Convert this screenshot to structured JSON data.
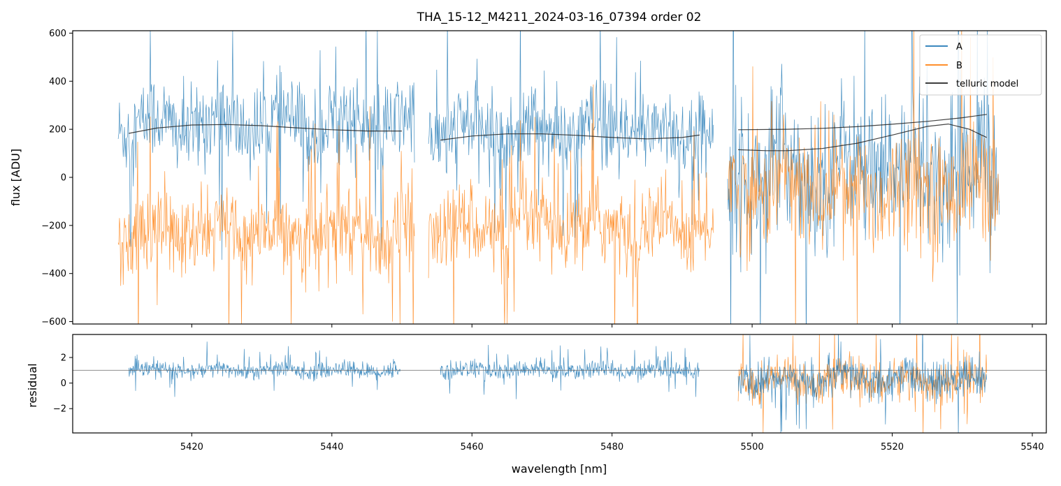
{
  "chart_data": [
    {
      "type": "line",
      "panel": "top",
      "title": "THA_15-12_M4211_2024-03-16_07394  order 02",
      "ylabel": "flux [ADU]",
      "xlabel": "",
      "xlim": [
        5403,
        5542
      ],
      "ylim": [
        -610,
        610
      ],
      "xticks": [
        5420,
        5440,
        5460,
        5480,
        5500,
        5520,
        5540
      ],
      "yticks": [
        600,
        400,
        200,
        0,
        -200,
        -400,
        -600
      ],
      "ytick_labels": [
        "600",
        "400",
        "200",
        "0",
        "−200",
        "−400",
        "−600"
      ],
      "colors": {
        "A": "#1f77b4",
        "B": "#ff7f0e",
        "model": "#222222"
      },
      "segments": [
        {
          "x": [
            5409.5,
            5451.8
          ],
          "A_level": 220,
          "A_noise": 150,
          "B_level": -230,
          "B_noise": 150
        },
        {
          "x": [
            5453.8,
            5494.5
          ],
          "A_level": 190,
          "A_noise": 150,
          "B_level": -210,
          "B_noise": 150
        },
        {
          "x": [
            5496.5,
            5535.3
          ],
          "A_level": 40,
          "A_noise": 260,
          "B_level": -40,
          "B_noise": 200
        }
      ],
      "series": [
        {
          "name": "A",
          "color": "#1f77b4"
        },
        {
          "name": "B",
          "color": "#ff7f0e"
        },
        {
          "name": "telluric model",
          "color": "#222222",
          "curves": [
            {
              "x": [
                5411,
                5415,
                5420,
                5425,
                5430,
                5435,
                5440,
                5445,
                5450
              ],
              "y": [
                183,
                205,
                218,
                220,
                215,
                206,
                198,
                193,
                193
              ]
            },
            {
              "x": [
                5455.5,
                5460,
                5465,
                5470,
                5475,
                5480,
                5485,
                5490,
                5492.5
              ],
              "y": [
                155,
                172,
                181,
                181,
                175,
                166,
                160,
                166,
                176
              ]
            },
            {
              "x": [
                5498,
                5505,
                5510,
                5515,
                5520,
                5525,
                5530,
                5533.5
              ],
              "y": [
                198,
                200,
                204,
                211,
                221,
                233,
                248,
                262
              ]
            },
            {
              "x": [
                5498,
                5502,
                5505,
                5510,
                5515,
                5520,
                5525,
                5528,
                5531,
                5533.5
              ],
              "y": [
                115,
                111,
                111,
                120,
                142,
                176,
                212,
                222,
                200,
                166
              ]
            }
          ]
        }
      ],
      "legend": {
        "position": "top-right",
        "entries": [
          "A",
          "B",
          "telluric model"
        ]
      }
    },
    {
      "type": "line",
      "panel": "bottom",
      "title": "",
      "ylabel": "residual",
      "xlabel": "wavelength [nm]",
      "xlim": [
        5403,
        5542
      ],
      "ylim": [
        -3.9,
        3.8
      ],
      "xticks": [
        5420,
        5440,
        5460,
        5480,
        5500,
        5520,
        5540
      ],
      "xtick_labels": [
        "5420",
        "5440",
        "5460",
        "5480",
        "5500",
        "5520",
        "5540"
      ],
      "yticks": [
        2,
        0,
        -2
      ],
      "ytick_labels": [
        "2",
        "0",
        "−2"
      ],
      "reference_line": 1,
      "segments": [
        {
          "x": [
            5411,
            5449.8
          ],
          "A_level": 1.0,
          "A_noise": 0.55
        },
        {
          "x": [
            5455.5,
            5492.5
          ],
          "A_level": 1.0,
          "A_noise": 0.6
        },
        {
          "x": [
            5498,
            5533.5
          ],
          "A_level": 0.3,
          "A_noise": 1.3,
          "B_level": 0.2,
          "B_noise": 1.3
        }
      ]
    }
  ]
}
